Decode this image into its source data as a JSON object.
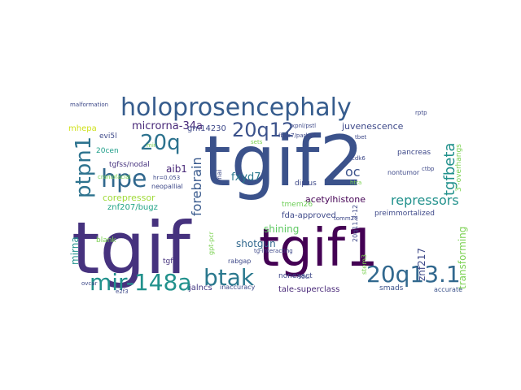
{
  "words": [
    {
      "text": "tgif2",
      "color": "#3b528b"
    },
    {
      "text": "tgif",
      "color": "#46327e"
    },
    {
      "text": "tgif1",
      "color": "#440154"
    },
    {
      "text": "holoprosencephaly",
      "color": "#365c8d"
    },
    {
      "text": "20q12",
      "color": "#3b528b"
    },
    {
      "text": "20q13.1",
      "color": "#31688e"
    },
    {
      "text": "mir-148a",
      "color": "#21918c"
    },
    {
      "text": "btak",
      "color": "#2a788e"
    },
    {
      "text": "hpe",
      "color": "#31688e"
    },
    {
      "text": "20q",
      "color": "#2c728e"
    },
    {
      "text": "ptpn1",
      "color": "#2c728e"
    },
    {
      "text": "tgfbeta",
      "color": "#21918c"
    },
    {
      "text": "repressors",
      "color": "#21918c"
    },
    {
      "text": "forebrain",
      "color": "#38598c"
    },
    {
      "text": "oc",
      "color": "#3b528b"
    },
    {
      "text": "microrna-34a",
      "color": "#482878"
    },
    {
      "text": "juvenescence",
      "color": "#3e4989"
    },
    {
      "text": "corepressor",
      "color": "#a0da39"
    },
    {
      "text": "mhepa",
      "color": "#d0e11c"
    },
    {
      "text": "gm14230",
      "color": "#3e4989"
    },
    {
      "text": "fxyd7",
      "color": "#2a788e"
    },
    {
      "text": "aib1",
      "color": "#482878"
    },
    {
      "text": "tgfss/nodal",
      "color": "#46327e"
    },
    {
      "text": "znf207/bugz",
      "color": "#20a386"
    },
    {
      "text": "acetylhistone",
      "color": "#440154"
    },
    {
      "text": "fda-approved",
      "color": "#3e4989"
    },
    {
      "text": "shining",
      "color": "#5ec962"
    },
    {
      "text": "shotgun",
      "color": "#31688e"
    },
    {
      "text": "tale-superclass",
      "color": "#482878"
    },
    {
      "text": "nonexact",
      "color": "#3e4989"
    },
    {
      "text": "jalncs",
      "color": "#443983"
    },
    {
      "text": "tgfi2",
      "color": "#46327e"
    },
    {
      "text": "smads",
      "color": "#3b528b"
    },
    {
      "text": "accurate",
      "color": "#3b528b"
    },
    {
      "text": "transforming",
      "color": "#7ad151"
    },
    {
      "text": "znf217",
      "color": "#3e4989"
    },
    {
      "text": "preimmortalized",
      "color": "#3e4989"
    },
    {
      "text": "tmem26",
      "color": "#6ece58"
    },
    {
      "text": "mirna",
      "color": "#21918c"
    },
    {
      "text": "blank",
      "color": "#7ad151"
    },
    {
      "text": "rabgap",
      "color": "#3e4989"
    },
    {
      "text": "pancreas",
      "color": "#3e4989"
    },
    {
      "text": "nontumor",
      "color": "#3e4989"
    },
    {
      "text": "evi5l",
      "color": "#3e4989"
    },
    {
      "text": "inaccuracy",
      "color": "#3e4989"
    },
    {
      "text": "20cen",
      "color": "#1f9e89"
    },
    {
      "text": "neopallial",
      "color": "#3e4989"
    },
    {
      "text": "dipius",
      "color": "#3e4989"
    },
    {
      "text": "malformation",
      "color": "#3e4989"
    },
    {
      "text": "3'-overhangs",
      "color": "#7ad151"
    },
    {
      "text": "rptp",
      "color": "#3e4989"
    },
    {
      "text": "cdk6",
      "color": "#3e4989"
    },
    {
      "text": "ctbp",
      "color": "#3e4989"
    },
    {
      "text": "htra",
      "color": "#7ad151"
    },
    {
      "text": "20q11.2-12",
      "color": "#3e4989"
    },
    {
      "text": "stem3",
      "color": "#7ad151"
    },
    {
      "text": "tg-interacting",
      "color": "#3e4989"
    },
    {
      "text": "ovcar",
      "color": "#3e4989"
    },
    {
      "text": "fbxo7/park15",
      "color": "#3e4989"
    },
    {
      "text": "sets",
      "color": "#7ad151"
    },
    {
      "text": "xpnl/pstl",
      "color": "#3e4989"
    },
    {
      "text": "hr=0.053",
      "color": "#3e4989"
    },
    {
      "text": "95ci",
      "color": "#3e4989"
    },
    {
      "text": "craniofacial",
      "color": "#7ad151"
    },
    {
      "text": "e2f3",
      "color": "#3e4989"
    },
    {
      "text": "rnai",
      "color": "#3e4989"
    },
    {
      "text": "tomm20",
      "color": "#3e4989"
    },
    {
      "text": "gpt-pcr",
      "color": "#7ad151"
    },
    {
      "text": "tbet",
      "color": "#3e4989"
    },
    {
      "text": "mir",
      "color": "#7ad151"
    }
  ]
}
